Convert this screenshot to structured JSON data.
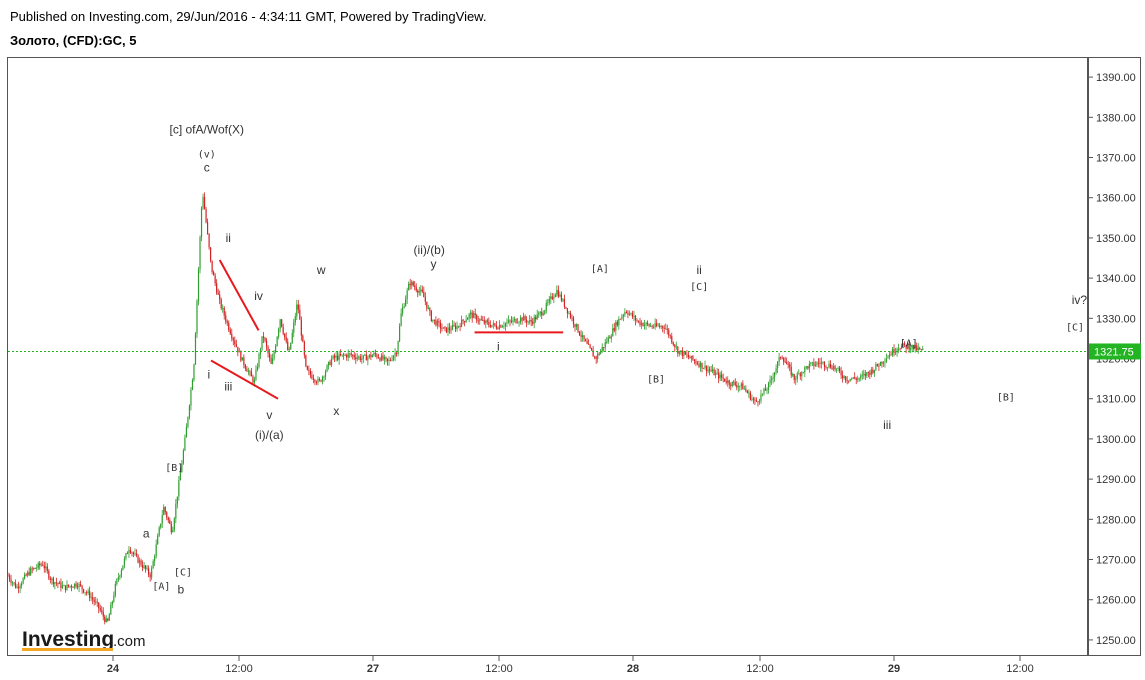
{
  "header": {
    "published": "Published on Investing.com, 29/Jun/2016 - 4:34:11 GMT, Powered by TradingView.",
    "instrument": "Золото, (CFD):GC, 5"
  },
  "logo": {
    "main": "Investing",
    "suffix": ".com"
  },
  "colors": {
    "up": "#2e9e2e",
    "down": "#d42020",
    "wave_line": "#e8191c",
    "last_price_line": "#22b422",
    "last_price_badge": "#22b422"
  },
  "chart_data": {
    "type": "candlestick",
    "x_ticks": [
      "24",
      "12:00",
      "27",
      "12:00",
      "28",
      "12:00",
      "29",
      "12:00"
    ],
    "y_ticks": [
      "1390.00",
      "1380.00",
      "1370.00",
      "1360.00",
      "1350.00",
      "1340.00",
      "1330.00",
      "1320.00",
      "1310.00",
      "1300.00",
      "1290.00",
      "1280.00",
      "1270.00",
      "1260.00",
      "1250.00"
    ],
    "ylim": [
      1246,
      1395
    ],
    "last_price": {
      "value": 1321.75,
      "label": "1321.75"
    },
    "price_path": [
      [
        0,
        1266
      ],
      [
        0.2,
        1263
      ],
      [
        0.5,
        1267
      ],
      [
        0.8,
        1269
      ],
      [
        1.0,
        1265
      ],
      [
        1.3,
        1263
      ],
      [
        1.6,
        1264
      ],
      [
        1.9,
        1261
      ],
      [
        2.1,
        1258
      ],
      [
        2.3,
        1254
      ],
      [
        2.5,
        1264
      ],
      [
        2.8,
        1273
      ],
      [
        3.0,
        1270
      ],
      [
        3.3,
        1266
      ],
      [
        3.6,
        1283
      ],
      [
        3.8,
        1277
      ],
      [
        4.1,
        1300
      ],
      [
        4.3,
        1318
      ],
      [
        4.5,
        1362
      ],
      [
        4.7,
        1343
      ],
      [
        4.9,
        1334
      ],
      [
        5.1,
        1328
      ],
      [
        5.4,
        1320
      ],
      [
        5.7,
        1314
      ],
      [
        5.9,
        1326
      ],
      [
        6.1,
        1318
      ],
      [
        6.3,
        1330
      ],
      [
        6.5,
        1321
      ],
      [
        6.7,
        1334
      ],
      [
        6.9,
        1317
      ],
      [
        7.2,
        1314
      ],
      [
        7.5,
        1320
      ],
      [
        7.9,
        1321
      ],
      [
        8.2,
        1320
      ],
      [
        8.5,
        1321
      ],
      [
        8.8,
        1319
      ],
      [
        9.0,
        1322
      ],
      [
        9.1,
        1331
      ],
      [
        9.3,
        1339
      ],
      [
        9.6,
        1336
      ],
      [
        9.8,
        1330
      ],
      [
        10.1,
        1327
      ],
      [
        10.4,
        1328
      ],
      [
        10.7,
        1331
      ],
      [
        11.0,
        1329
      ],
      [
        11.3,
        1328
      ],
      [
        11.6,
        1329
      ],
      [
        11.9,
        1330
      ],
      [
        12.1,
        1329
      ],
      [
        12.4,
        1332
      ],
      [
        12.7,
        1337
      ],
      [
        13.0,
        1331
      ],
      [
        13.3,
        1325
      ],
      [
        13.6,
        1320
      ],
      [
        13.9,
        1325
      ],
      [
        14.1,
        1329
      ],
      [
        14.3,
        1332
      ],
      [
        14.6,
        1329
      ],
      [
        14.9,
        1328
      ],
      [
        15.2,
        1328
      ],
      [
        15.5,
        1322
      ],
      [
        15.8,
        1320
      ],
      [
        16.1,
        1318
      ],
      [
        16.4,
        1316
      ],
      [
        16.7,
        1314
      ],
      [
        17.0,
        1313
      ],
      [
        17.3,
        1309
      ],
      [
        17.6,
        1313
      ],
      [
        17.9,
        1321
      ],
      [
        18.2,
        1315
      ],
      [
        18.5,
        1318
      ],
      [
        18.8,
        1319
      ],
      [
        19.1,
        1318
      ],
      [
        19.4,
        1315
      ],
      [
        19.7,
        1315
      ],
      [
        20.0,
        1317
      ],
      [
        20.3,
        1320
      ],
      [
        20.6,
        1323
      ],
      [
        20.9,
        1323
      ],
      [
        21.1,
        1322
      ],
      [
        21.2,
        1322
      ]
    ],
    "annotations": [
      {
        "text": "[c] ofA/Wof(X)",
        "x": 4.6,
        "y": 1376,
        "kind": "text"
      },
      {
        "text": "(v)",
        "x": 4.6,
        "y": 1370,
        "kind": "bracket"
      },
      {
        "text": "c",
        "x": 4.6,
        "y": 1366.5,
        "kind": "text"
      },
      {
        "text": "ii",
        "x": 5.1,
        "y": 1349,
        "kind": "text"
      },
      {
        "text": "iv",
        "x": 5.8,
        "y": 1334.5,
        "kind": "text"
      },
      {
        "text": "i",
        "x": 4.65,
        "y": 1315,
        "kind": "text"
      },
      {
        "text": "iii",
        "x": 5.1,
        "y": 1312,
        "kind": "text"
      },
      {
        "text": "v",
        "x": 6.05,
        "y": 1305,
        "kind": "text"
      },
      {
        "text": "(i)/(a)",
        "x": 6.05,
        "y": 1300,
        "kind": "text"
      },
      {
        "text": "w",
        "x": 7.25,
        "y": 1341,
        "kind": "text"
      },
      {
        "text": "x",
        "x": 7.6,
        "y": 1306,
        "kind": "text"
      },
      {
        "text": "(ii)/(b)",
        "x": 9.75,
        "y": 1346,
        "kind": "text"
      },
      {
        "text": "y",
        "x": 9.85,
        "y": 1342.5,
        "kind": "text"
      },
      {
        "text": "i",
        "x": 11.35,
        "y": 1322,
        "kind": "text"
      },
      {
        "text": "[A]",
        "x": 13.7,
        "y": 1341.5,
        "kind": "bracket"
      },
      {
        "text": "[B]",
        "x": 15.0,
        "y": 1314,
        "kind": "bracket"
      },
      {
        "text": "ii",
        "x": 16.0,
        "y": 1341,
        "kind": "text"
      },
      {
        "text": "[C]",
        "x": 16.0,
        "y": 1337,
        "kind": "bracket"
      },
      {
        "text": "[A]",
        "x": 20.85,
        "y": 1323,
        "kind": "bracket"
      },
      {
        "text": "iii",
        "x": 20.35,
        "y": 1302.5,
        "kind": "text"
      },
      {
        "text": "[B]",
        "x": 23.1,
        "y": 1309.5,
        "kind": "bracket"
      },
      {
        "text": "iv?",
        "x": 24.8,
        "y": 1333.5,
        "kind": "text"
      },
      {
        "text": "[C]",
        "x": 24.7,
        "y": 1327,
        "kind": "bracket"
      },
      {
        "text": "[B]",
        "x": 3.85,
        "y": 1292,
        "kind": "bracket"
      },
      {
        "text": "a",
        "x": 3.2,
        "y": 1275.5,
        "kind": "text"
      },
      {
        "text": "[A]",
        "x": 3.55,
        "y": 1262.5,
        "kind": "bracket"
      },
      {
        "text": "[C]",
        "x": 4.05,
        "y": 1266,
        "kind": "bracket"
      },
      {
        "text": "b",
        "x": 4.0,
        "y": 1261.5,
        "kind": "text"
      }
    ],
    "wave_lines": [
      {
        "from": [
          4.9,
          1344.5
        ],
        "to": [
          5.8,
          1327
        ]
      },
      {
        "from": [
          4.7,
          1319.5
        ],
        "to": [
          6.25,
          1310
        ]
      },
      {
        "from": [
          10.8,
          1326.5
        ],
        "to": [
          12.85,
          1326.5
        ]
      }
    ]
  }
}
